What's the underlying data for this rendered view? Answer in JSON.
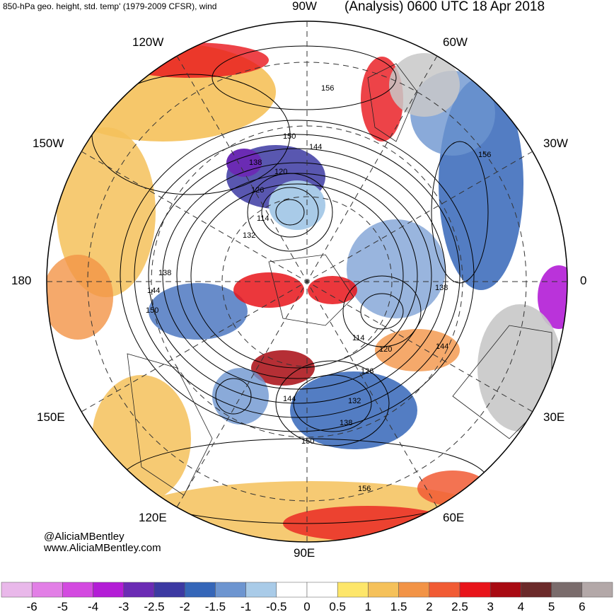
{
  "header": {
    "left_title": "850-hPa geo. height, std. temp' (1979-2009 CFSR), wind",
    "right_title": "(Analysis) 0600 UTC 18 Apr 2018"
  },
  "longitude_labels": {
    "w90": "90W",
    "w60": "60W",
    "w30": "30W",
    "zero": "0",
    "e30": "30E",
    "e60": "60E",
    "e90": "90E",
    "e120": "120E",
    "e150": "150E",
    "deg180": "180",
    "w150": "150W",
    "w120": "120W"
  },
  "contour_labels": [
    "156",
    "150",
    "144",
    "138",
    "132",
    "126",
    "120",
    "114",
    "138",
    "144",
    "150",
    "138",
    "144",
    "120",
    "114",
    "126",
    "132",
    "138",
    "144",
    "150",
    "156",
    "156"
  ],
  "credits": {
    "handle": "@AliciaMBentley",
    "website": "www.AliciaMBentley.com"
  },
  "colorbar": {
    "ticks": [
      "-6",
      "-5",
      "-4",
      "-3",
      "-2.5",
      "-2",
      "-1.5",
      "-1",
      "-0.5",
      "0",
      "0.5",
      "1",
      "1.5",
      "2",
      "2.5",
      "3",
      "4",
      "5",
      "6"
    ],
    "colors": [
      "#e9b8ea",
      "#e27fe6",
      "#d34ae0",
      "#b31dd6",
      "#6b2bb4",
      "#3c39a2",
      "#3566b8",
      "#6d95d0",
      "#a9cbe8",
      "#ffffff",
      "#ffffff",
      "#fde66a",
      "#f5c15a",
      "#f29346",
      "#f15b34",
      "#e8141a",
      "#a80a12",
      "#6b2a2a",
      "#7a6c6c",
      "#b3a8a8"
    ]
  }
}
